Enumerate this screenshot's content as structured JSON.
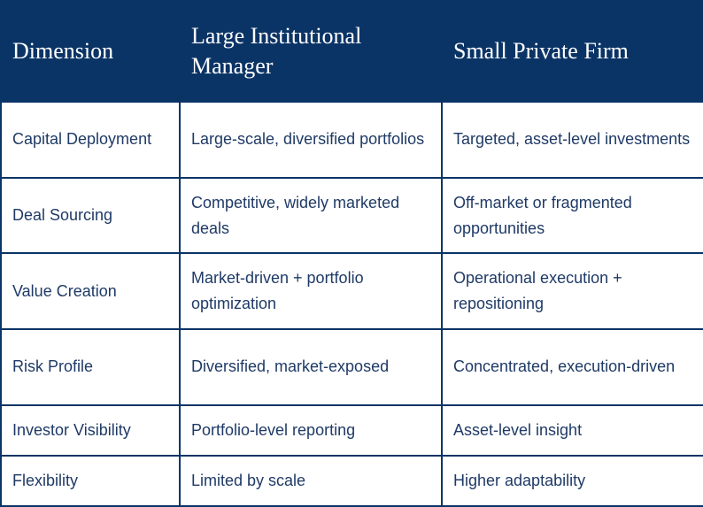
{
  "table": {
    "header": [
      "Dimension",
      "Large Institutional Manager",
      "Small Private Firm"
    ],
    "rows": [
      [
        "Capital Deployment",
        "Large-scale, diversified portfolios",
        "Targeted, asset-level investments"
      ],
      [
        "Deal Sourcing",
        "Competitive, widely marketed deals",
        "Off-market or fragmented opportunities"
      ],
      [
        "Value Creation",
        "Market-driven + portfolio optimization",
        "Operational execution + repositioning"
      ],
      [
        "Risk Profile",
        "Diversified, market-exposed",
        "Concentrated, execution-driven"
      ],
      [
        "Investor Visibility",
        "Portfolio-level reporting",
        "Asset-level insight"
      ],
      [
        "Flexibility",
        "Limited by scale",
        "Higher adaptability"
      ]
    ]
  }
}
